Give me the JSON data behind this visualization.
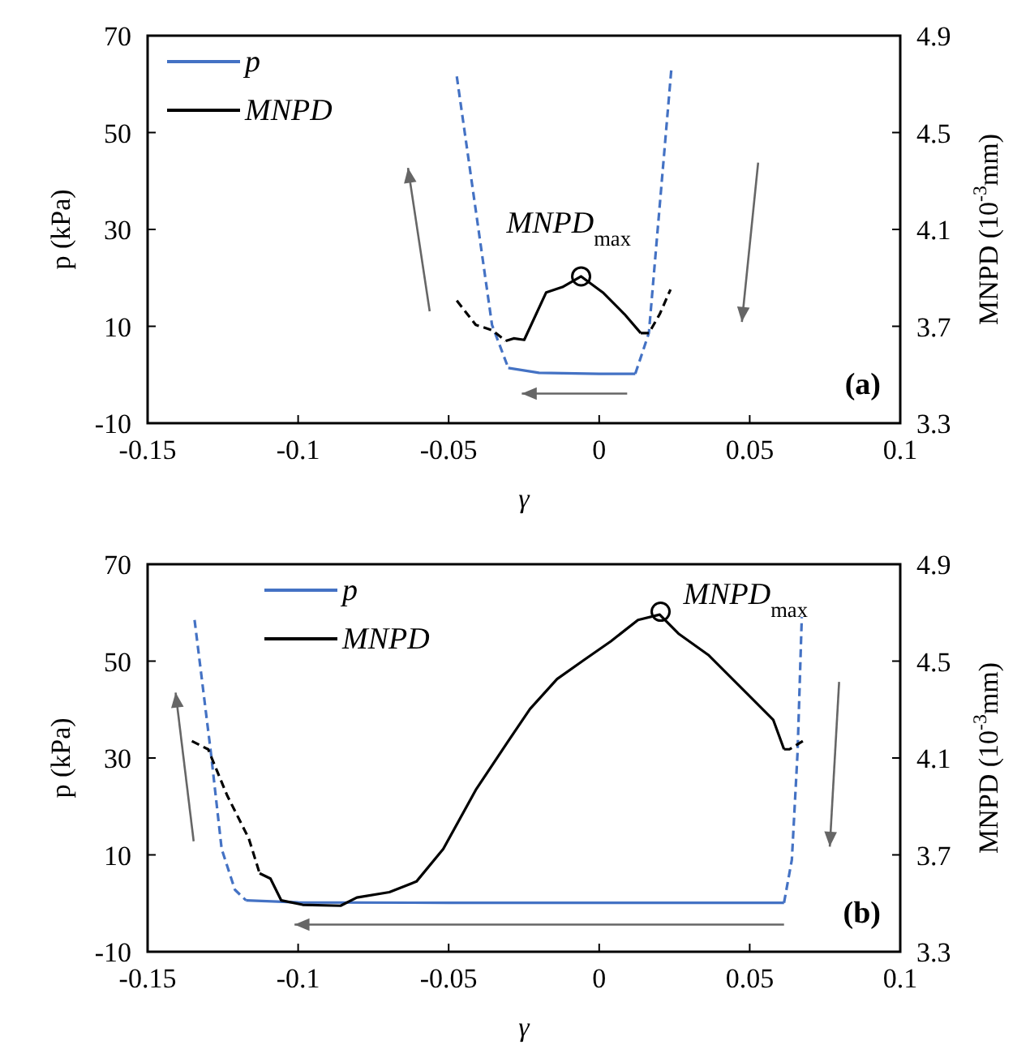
{
  "chart_data": [
    {
      "type": "line",
      "xlabel": "γ",
      "ylabel": "p (kPa)",
      "y2label": "MNPD (10$^{-3}$mm)",
      "xlim": [
        -0.15,
        0.1
      ],
      "xticks": [
        -0.15,
        -0.1,
        -0.05,
        0,
        0.05,
        0.1
      ],
      "ylim": [
        -10,
        70
      ],
      "yticks": [
        -10,
        10,
        30,
        50,
        70
      ],
      "y2lim": [
        3.3,
        4.9
      ],
      "y2ticks": [
        3.3,
        3.7,
        4.1,
        4.5,
        4.9
      ],
      "legend": "top left",
      "series": [
        {
          "name": "p",
          "color": "#4472c4",
          "line_style": "solid",
          "x": [
            -0.0302,
            -0.02,
            0,
            0.012
          ],
          "values": [
            1.4,
            0.4,
            0.2,
            0.2
          ]
        },
        {
          "name": "MNPD",
          "color": "#000000",
          "axis": "y2",
          "line_style": "solid",
          "x": [
            -0.031,
            -0.0284,
            -0.0249,
            -0.0176,
            -0.0122,
            -0.006,
            0.0012,
            0.0084,
            0.0138
          ],
          "values": [
            3.64,
            3.65,
            3.644,
            3.84,
            3.862,
            3.906,
            3.84,
            3.75,
            3.672
          ]
        },
        {
          "color": "#4472c4",
          "line_style": "dashed",
          "x": [
            -0.0473,
            -0.0356,
            -0.0302
          ],
          "values": [
            61.6,
            10.3,
            1.4
          ]
        },
        {
          "color": "#4472c4",
          "line_style": "dashed",
          "x": [
            0.012,
            0.0165,
            0.024
          ],
          "values": [
            0.2,
            8.6,
            63.3
          ]
        },
        {
          "color": "#000000",
          "axis": "y2",
          "line_style": "dashed",
          "x": [
            -0.0473,
            -0.041,
            -0.0356,
            -0.031
          ],
          "values": [
            3.806,
            3.706,
            3.684,
            3.64
          ]
        },
        {
          "color": "#000000",
          "axis": "y2",
          "line_style": "dashed",
          "x": [
            0.0138,
            0.0165,
            0.0201,
            0.0237
          ],
          "values": [
            3.672,
            3.672,
            3.75,
            3.852
          ]
        },
        {
          "type": "scatter",
          "color": "#000000",
          "axis": "y2",
          "marker": "circle",
          "x": [
            -0.006
          ],
          "values": [
            3.906
          ]
        }
      ],
      "annotations": [
        "MNPD$_{max}$",
        "(a)"
      ]
    },
    {
      "type": "line",
      "xlabel": "γ",
      "ylabel": "p (kPa)",
      "y2label": "MNPD (10$^{-3}$mm)",
      "xlim": [
        -0.15,
        0.1
      ],
      "xticks": [
        -0.15,
        -0.1,
        -0.05,
        0,
        0.05,
        0.1
      ],
      "ylim": [
        -10,
        70
      ],
      "yticks": [
        -10,
        10,
        30,
        50,
        70
      ],
      "y2lim": [
        3.3,
        4.9
      ],
      "y2ticks": [
        3.3,
        3.7,
        4.1,
        4.5,
        4.9
      ],
      "legend": "top left",
      "series": [
        {
          "name": "p",
          "color": "#4472c4",
          "line_style": "solid",
          "x": [
            -0.1173,
            -0.1,
            -0.05,
            0,
            0.0614
          ],
          "values": [
            0.6,
            0.2,
            0.1,
            0.1,
            0.1
          ]
        },
        {
          "name": "MNPD",
          "color": "#000000",
          "axis": "y2",
          "line_style": "solid",
          "x": [
            -0.1128,
            -0.1092,
            -0.1056,
            -0.0985,
            -0.0859,
            -0.0805,
            -0.0697,
            -0.0607,
            -0.0518,
            -0.041,
            -0.0302,
            -0.023,
            -0.014,
            -0.0051,
            0.0039,
            0.0129,
            0.0201,
            0.0263,
            0.0362,
            0.0488,
            0.0578,
            0.0614
          ],
          "values": [
            3.624,
            3.602,
            3.512,
            3.494,
            3.49,
            3.524,
            3.546,
            3.59,
            3.724,
            3.968,
            4.17,
            4.302,
            4.426,
            4.504,
            4.582,
            4.67,
            4.692,
            4.614,
            4.526,
            4.37,
            4.258,
            4.136
          ]
        },
        {
          "color": "#4472c4",
          "line_style": "dashed",
          "x": [
            -0.1344,
            -0.129,
            -0.1254,
            -0.121,
            -0.1173
          ],
          "values": [
            58.5,
            31.2,
            11.2,
            2.8,
            0.6
          ]
        },
        {
          "color": "#4472c4",
          "line_style": "dashed",
          "x": [
            0.0614,
            0.064,
            0.0659,
            0.0673
          ],
          "values": [
            0.1,
            9,
            31.2,
            59.1
          ]
        },
        {
          "color": "#000000",
          "axis": "y2",
          "line_style": "dashed",
          "x": [
            -0.1353,
            -0.1299,
            -0.1236,
            -0.1164,
            -0.1128
          ],
          "values": [
            4.17,
            4.136,
            3.946,
            3.768,
            3.624
          ]
        },
        {
          "color": "#000000",
          "axis": "y2",
          "line_style": "dashed",
          "x": [
            0.0614,
            0.0632,
            0.0677
          ],
          "values": [
            4.136,
            4.136,
            4.17
          ]
        },
        {
          "type": "scatter",
          "color": "#000000",
          "axis": "y2",
          "marker": "circle",
          "x": [
            0.0204
          ],
          "values": [
            4.704
          ]
        }
      ],
      "annotations": [
        "MNPD$_{max}$",
        "(b)"
      ]
    }
  ]
}
